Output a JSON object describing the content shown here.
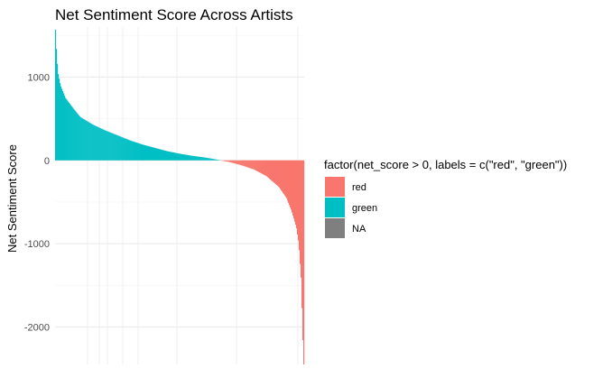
{
  "chart_data": {
    "type": "bar",
    "title": "Net Sentiment Score Across Artists",
    "xlabel": "",
    "ylabel": "Net Sentiment Score",
    "ylim": [
      -2450,
      1600
    ],
    "y_ticks": [
      1000,
      0,
      -1000,
      -2000
    ],
    "y_tick_labels": [
      "1000",
      "0",
      "-1000",
      "-2000"
    ],
    "grid": true,
    "legend": {
      "position": "right",
      "title": "factor(net_score > 0, labels = c(\"red\", \"green\"))",
      "entries": [
        {
          "label": "red",
          "color": "#F8766D"
        },
        {
          "label": "green",
          "color": "#00BFC4"
        },
        {
          "label": "NA",
          "color": "#7F7F7F"
        }
      ]
    },
    "sorted_values_profile": [
      {
        "rank": 0.0,
        "value": 1570
      },
      {
        "rank": 0.005,
        "value": 1250
      },
      {
        "rank": 0.01,
        "value": 1050
      },
      {
        "rank": 0.02,
        "value": 900
      },
      {
        "rank": 0.04,
        "value": 750
      },
      {
        "rank": 0.07,
        "value": 630
      },
      {
        "rank": 0.1,
        "value": 520
      },
      {
        "rank": 0.15,
        "value": 430
      },
      {
        "rank": 0.2,
        "value": 360
      },
      {
        "rank": 0.25,
        "value": 300
      },
      {
        "rank": 0.3,
        "value": 240
      },
      {
        "rank": 0.35,
        "value": 190
      },
      {
        "rank": 0.4,
        "value": 150
      },
      {
        "rank": 0.45,
        "value": 110
      },
      {
        "rank": 0.5,
        "value": 80
      },
      {
        "rank": 0.55,
        "value": 55
      },
      {
        "rank": 0.6,
        "value": 35
      },
      {
        "rank": 0.64,
        "value": 15
      },
      {
        "rank": 0.665,
        "value": 0
      },
      {
        "rank": 0.7,
        "value": -20
      },
      {
        "rank": 0.75,
        "value": -60
      },
      {
        "rank": 0.8,
        "value": -110
      },
      {
        "rank": 0.85,
        "value": -190
      },
      {
        "rank": 0.9,
        "value": -320
      },
      {
        "rank": 0.93,
        "value": -450
      },
      {
        "rank": 0.95,
        "value": -600
      },
      {
        "rank": 0.97,
        "value": -800
      },
      {
        "rank": 0.98,
        "value": -1000
      },
      {
        "rank": 0.99,
        "value": -1450
      },
      {
        "rank": 0.995,
        "value": -2050
      },
      {
        "rank": 1.0,
        "value": -2450
      }
    ],
    "bar_count": 275,
    "series": [
      {
        "name": "green",
        "color": "#00BFC4",
        "condition": "net_score > 0"
      },
      {
        "name": "red",
        "color": "#F8766D",
        "condition": "net_score <= 0"
      }
    ]
  }
}
